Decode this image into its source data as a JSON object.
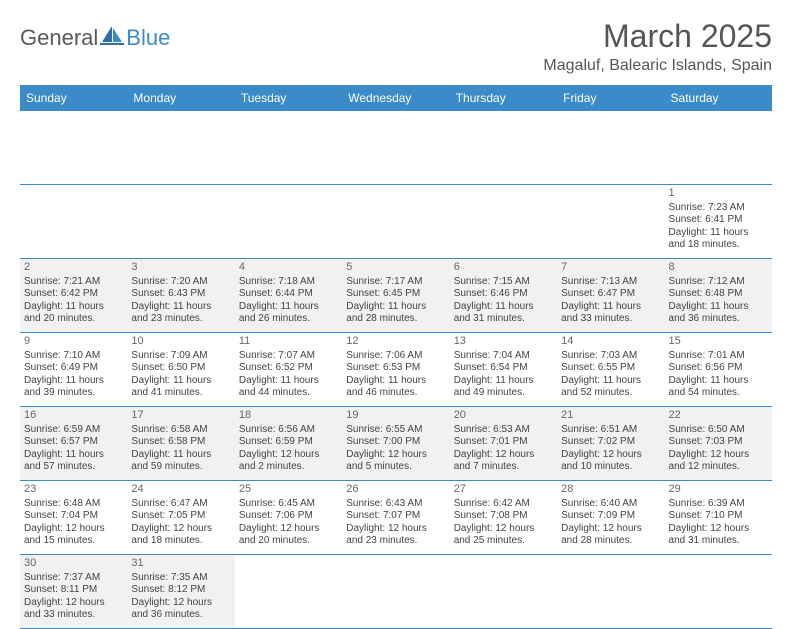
{
  "brand": {
    "part1": "General",
    "part2": "Blue"
  },
  "title": "March 2025",
  "location": "Magaluf, Balearic Islands, Spain",
  "colors": {
    "accent": "#3b8bc9",
    "text": "#444444",
    "alt_bg": "#f1f1f1",
    "bg": "#ffffff"
  },
  "dayHeaders": [
    "Sunday",
    "Monday",
    "Tuesday",
    "Wednesday",
    "Thursday",
    "Friday",
    "Saturday"
  ],
  "weeks": [
    [
      null,
      null,
      null,
      null,
      null,
      null,
      {
        "n": "1",
        "sr": "Sunrise: 7:23 AM",
        "ss": "Sunset: 6:41 PM",
        "d1": "Daylight: 11 hours",
        "d2": "and 18 minutes.",
        "alt": false
      }
    ],
    [
      {
        "n": "2",
        "sr": "Sunrise: 7:21 AM",
        "ss": "Sunset: 6:42 PM",
        "d1": "Daylight: 11 hours",
        "d2": "and 20 minutes.",
        "alt": true
      },
      {
        "n": "3",
        "sr": "Sunrise: 7:20 AM",
        "ss": "Sunset: 6:43 PM",
        "d1": "Daylight: 11 hours",
        "d2": "and 23 minutes.",
        "alt": true
      },
      {
        "n": "4",
        "sr": "Sunrise: 7:18 AM",
        "ss": "Sunset: 6:44 PM",
        "d1": "Daylight: 11 hours",
        "d2": "and 26 minutes.",
        "alt": true
      },
      {
        "n": "5",
        "sr": "Sunrise: 7:17 AM",
        "ss": "Sunset: 6:45 PM",
        "d1": "Daylight: 11 hours",
        "d2": "and 28 minutes.",
        "alt": true
      },
      {
        "n": "6",
        "sr": "Sunrise: 7:15 AM",
        "ss": "Sunset: 6:46 PM",
        "d1": "Daylight: 11 hours",
        "d2": "and 31 minutes.",
        "alt": true
      },
      {
        "n": "7",
        "sr": "Sunrise: 7:13 AM",
        "ss": "Sunset: 6:47 PM",
        "d1": "Daylight: 11 hours",
        "d2": "and 33 minutes.",
        "alt": true
      },
      {
        "n": "8",
        "sr": "Sunrise: 7:12 AM",
        "ss": "Sunset: 6:48 PM",
        "d1": "Daylight: 11 hours",
        "d2": "and 36 minutes.",
        "alt": true
      }
    ],
    [
      {
        "n": "9",
        "sr": "Sunrise: 7:10 AM",
        "ss": "Sunset: 6:49 PM",
        "d1": "Daylight: 11 hours",
        "d2": "and 39 minutes.",
        "alt": false
      },
      {
        "n": "10",
        "sr": "Sunrise: 7:09 AM",
        "ss": "Sunset: 6:50 PM",
        "d1": "Daylight: 11 hours",
        "d2": "and 41 minutes.",
        "alt": false
      },
      {
        "n": "11",
        "sr": "Sunrise: 7:07 AM",
        "ss": "Sunset: 6:52 PM",
        "d1": "Daylight: 11 hours",
        "d2": "and 44 minutes.",
        "alt": false
      },
      {
        "n": "12",
        "sr": "Sunrise: 7:06 AM",
        "ss": "Sunset: 6:53 PM",
        "d1": "Daylight: 11 hours",
        "d2": "and 46 minutes.",
        "alt": false
      },
      {
        "n": "13",
        "sr": "Sunrise: 7:04 AM",
        "ss": "Sunset: 6:54 PM",
        "d1": "Daylight: 11 hours",
        "d2": "and 49 minutes.",
        "alt": false
      },
      {
        "n": "14",
        "sr": "Sunrise: 7:03 AM",
        "ss": "Sunset: 6:55 PM",
        "d1": "Daylight: 11 hours",
        "d2": "and 52 minutes.",
        "alt": false
      },
      {
        "n": "15",
        "sr": "Sunrise: 7:01 AM",
        "ss": "Sunset: 6:56 PM",
        "d1": "Daylight: 11 hours",
        "d2": "and 54 minutes.",
        "alt": false
      }
    ],
    [
      {
        "n": "16",
        "sr": "Sunrise: 6:59 AM",
        "ss": "Sunset: 6:57 PM",
        "d1": "Daylight: 11 hours",
        "d2": "and 57 minutes.",
        "alt": true
      },
      {
        "n": "17",
        "sr": "Sunrise: 6:58 AM",
        "ss": "Sunset: 6:58 PM",
        "d1": "Daylight: 11 hours",
        "d2": "and 59 minutes.",
        "alt": true
      },
      {
        "n": "18",
        "sr": "Sunrise: 6:56 AM",
        "ss": "Sunset: 6:59 PM",
        "d1": "Daylight: 12 hours",
        "d2": "and 2 minutes.",
        "alt": true
      },
      {
        "n": "19",
        "sr": "Sunrise: 6:55 AM",
        "ss": "Sunset: 7:00 PM",
        "d1": "Daylight: 12 hours",
        "d2": "and 5 minutes.",
        "alt": true
      },
      {
        "n": "20",
        "sr": "Sunrise: 6:53 AM",
        "ss": "Sunset: 7:01 PM",
        "d1": "Daylight: 12 hours",
        "d2": "and 7 minutes.",
        "alt": true
      },
      {
        "n": "21",
        "sr": "Sunrise: 6:51 AM",
        "ss": "Sunset: 7:02 PM",
        "d1": "Daylight: 12 hours",
        "d2": "and 10 minutes.",
        "alt": true
      },
      {
        "n": "22",
        "sr": "Sunrise: 6:50 AM",
        "ss": "Sunset: 7:03 PM",
        "d1": "Daylight: 12 hours",
        "d2": "and 12 minutes.",
        "alt": true
      }
    ],
    [
      {
        "n": "23",
        "sr": "Sunrise: 6:48 AM",
        "ss": "Sunset: 7:04 PM",
        "d1": "Daylight: 12 hours",
        "d2": "and 15 minutes.",
        "alt": false
      },
      {
        "n": "24",
        "sr": "Sunrise: 6:47 AM",
        "ss": "Sunset: 7:05 PM",
        "d1": "Daylight: 12 hours",
        "d2": "and 18 minutes.",
        "alt": false
      },
      {
        "n": "25",
        "sr": "Sunrise: 6:45 AM",
        "ss": "Sunset: 7:06 PM",
        "d1": "Daylight: 12 hours",
        "d2": "and 20 minutes.",
        "alt": false
      },
      {
        "n": "26",
        "sr": "Sunrise: 6:43 AM",
        "ss": "Sunset: 7:07 PM",
        "d1": "Daylight: 12 hours",
        "d2": "and 23 minutes.",
        "alt": false
      },
      {
        "n": "27",
        "sr": "Sunrise: 6:42 AM",
        "ss": "Sunset: 7:08 PM",
        "d1": "Daylight: 12 hours",
        "d2": "and 25 minutes.",
        "alt": false
      },
      {
        "n": "28",
        "sr": "Sunrise: 6:40 AM",
        "ss": "Sunset: 7:09 PM",
        "d1": "Daylight: 12 hours",
        "d2": "and 28 minutes.",
        "alt": false
      },
      {
        "n": "29",
        "sr": "Sunrise: 6:39 AM",
        "ss": "Sunset: 7:10 PM",
        "d1": "Daylight: 12 hours",
        "d2": "and 31 minutes.",
        "alt": false
      }
    ],
    [
      {
        "n": "30",
        "sr": "Sunrise: 7:37 AM",
        "ss": "Sunset: 8:11 PM",
        "d1": "Daylight: 12 hours",
        "d2": "and 33 minutes.",
        "alt": true
      },
      {
        "n": "31",
        "sr": "Sunrise: 7:35 AM",
        "ss": "Sunset: 8:12 PM",
        "d1": "Daylight: 12 hours",
        "d2": "and 36 minutes.",
        "alt": true
      },
      null,
      null,
      null,
      null,
      null
    ]
  ]
}
